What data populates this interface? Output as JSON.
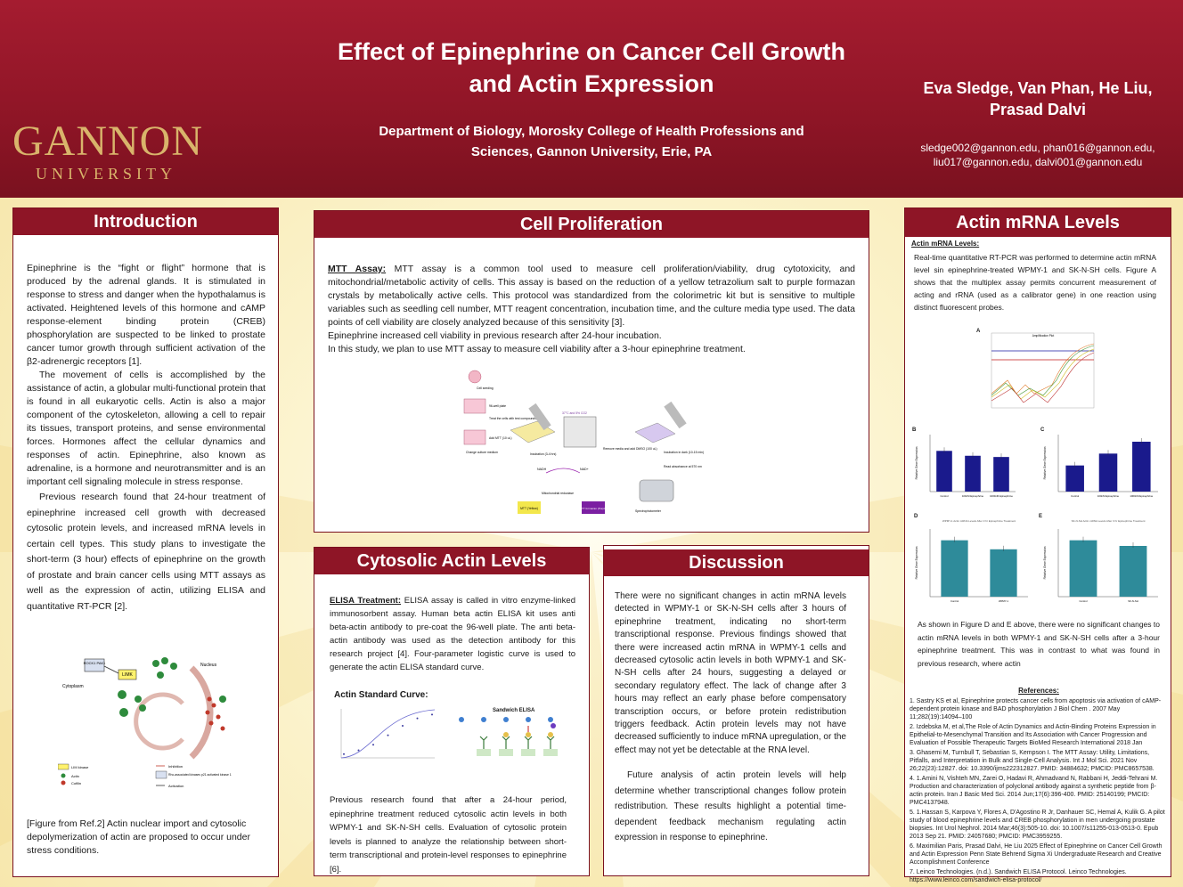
{
  "header": {
    "title_line1": "Effect of Epinephrine on Cancer Cell Growth",
    "title_line2": "and Actin Expression",
    "department_line1": "Department of Biology,  Morosky College of Health Professions and",
    "department_line2": "Sciences, Gannon University, Erie, PA",
    "authors_line1": "Eva Sledge, Van Phan, He Liu,",
    "authors_line2": "Prasad Dalvi",
    "emails_line1": "sledge002@gannon.edu, phan016@gannon.edu,",
    "emails_line2": "liu017@gannon.edu, dalvi001@gannon.edu",
    "logo_main": "GANNON",
    "logo_sub": "UNIVERSITY",
    "colors": {
      "maroon": "#8e1526",
      "gold": "#d9b46b"
    }
  },
  "introduction": {
    "heading": "Introduction",
    "p1": "Epinephrine is the “fight or flight” hormone that is produced by the adrenal glands. It is stimulated in response to stress and danger when the hypothalamus is activated. Heightened levels of this hormone and cAMP response-element binding protein (CREB) phosphorylation are suspected to be linked to prostate cancer tumor growth through sufficient activation of the β2-adrenergic receptors [1].",
    "p2": "The movement of cells is accomplished by the assistance of actin, a globular multi-functional protein that is found in all eukaryotic cells. Actin is also a major component of the cytoskeleton, allowing a cell to repair its tissues, transport proteins, and sense environmental forces. Hormones affect the cellular dynamics and responses of actin. Epinephrine, also known as adrenaline, is a hormone and neurotransmitter and is an important cell signaling molecule in stress response.",
    "p3": "Previous research found that 24-hour treatment of epinephrine increased cell growth with decreased cytosolic protein levels, and increased mRNA levels in certain cell types. This study plans to investigate the short-term (3 hour) effects of epinephrine on the growth of prostate and brain cancer cells using MTT assays as well as the expression of actin, utilizing ELISA and quantitative RT-PCR [2].",
    "figure": {
      "rock": "ROCK1 PAK1",
      "limk": "LIMK",
      "cytoplasm": "Cytoplasm",
      "nucleus": "Nucleus",
      "legend_limk": "LIM kinase",
      "legend_actin": "Actin",
      "legend_cofilin": "Cofilin",
      "legend_inhibition": "Inhibition",
      "legend_rho": "Rho-associated kinases p21 activated kinase 1",
      "legend_activation": "Activation"
    },
    "caption": "[Figure from Ref.2] Actin nuclear import and cytosolic depolymerization of actin are proposed to occur under stress conditions."
  },
  "cell_proliferation": {
    "heading": "Cell Proliferation",
    "mtt_label": "MTT Assay:",
    "mtt_text": " MTT assay is a common tool used to measure cell proliferation/viability, drug cytotoxicity, and mitochondrial/metabolic activity of cells.  This assay is based on the reduction of a yellow tetrazolium salt to purple formazan crystals by metabolically active cells. This protocol was standardized from the colorimetric kit but is sensitive to multiple variables such as seedling cell number, MTT reagent concentration, incubation time,  and the culture media type used. The data points of cell viability are closely analyzed because of this sensitivity [3].",
    "line2": "Epinephrine increased cell viability in previous research after 24-hour incubation.",
    "line3": "In this study, we plan to use MTT assay to measure cell viability after a 3-hour epinephrine treatment.",
    "diagram": {
      "seeding": "Cell seeding",
      "plate": "96-well plate",
      "treat": "Treat the cells with test compounds",
      "add_mtt": "Add MTT (10 uL)",
      "change": "Change culture medium",
      "incubation1": "Incubation (3-4 hrs)",
      "incubator": "37°C and 5% CO2",
      "remove": "Remove media and add DMSO (100 uL)",
      "incubation2": "Incubation in dark (10-15 min)",
      "absorbance": "Read absorbance at 570 nm",
      "nadh": "NADH",
      "nad": "NAD+",
      "mito": "Mitochondrial reductase",
      "mtt": "MTT (Yellow)",
      "formazan": "MTT formazan (Purple)",
      "spectro": "Spectrophotometer"
    }
  },
  "cytosolic": {
    "heading": "Cytosolic Actin Levels",
    "elisa_label": "ELISA Treatment:",
    "elisa_text": "  ELISA assay is called in vitro enzyme-linked immunosorbent assay. Human beta actin ELISA kit uses anti beta-actin antibody to pre-coat the 96-well plate. The anti beta-actin antibody was used as the detection antibody for this research project [4]. Four-parameter logistic curve is used to generate the actin ELISA standard curve.",
    "curve_title": "Actin Standard Curve:",
    "sandwich_title": "Sandwich ELISA",
    "after_text": "Previous research found that after a 24-hour period, epinephrine treatment reduced cytosolic actin levels in both WPMY-1 and SK-N-SH cells. Evaluation of cytosolic protein levels is planned to analyze the relationship between short-term transcriptional and protein-level responses to epinephrine [6]."
  },
  "discussion": {
    "heading": "Discussion",
    "p1": "There were no significant changes in actin mRNA levels detected in WPMY-1 or SK-N-SH cells after 3 hours of epinephrine treatment, indicating no short-term transcriptional response. Previous findings showed that there were increased actin mRNA in WPMY-1 cells and decreased cytosolic actin levels in both WPMY-1 and SK-N-SH cells after 24 hours, suggesting a delayed or secondary regulatory effect. The lack of change after 3 hours may reflect an early phase before compensatory transcription occurs, or before protein redistribution triggers feedback. Actin protein levels may not have decreased sufficiently to induce mRNA upregulation, or the effect may not yet be detectable at the RNA level.",
    "p2": "Future analysis of actin protein levels will help determine whether transcriptional changes follow protein redistribution. These results highlight a potential time-dependent feedback mechanism regulating actin expression in response to epinephrine."
  },
  "actin_mrna": {
    "heading": "Actin mRNA Levels",
    "sub_label": "Actin mRNA Levels:",
    "intro": "Real-time quantitative RT-PCR was performed to determine actin mRNA level sin epinephrine-treated WPMY-1 and SK-N-SH cells. Figure A shows that the multiplex assay permits concurrent measurement of acting and rRNA (used as a calibrator gene) in one reaction using distinct fluorescent probes.",
    "fig_a_label": "A",
    "fig_a_title": "Amplification Plot",
    "fig_b_label": "B",
    "fig_c_label": "C",
    "fig_d_label": "D",
    "fig_e_label": "E",
    "ylabel_fold": "Relative Gene Expression",
    "fig_d_title": "WPMY-1 Actin mRNA Levels After 3 hr Epinephrine Treatment",
    "fig_e_title": "SK-N-SH Actin mRNA Levels After 3 hr Epinephrine Treatment",
    "after_text": "As shown in Figure D and E above, there were no significant changes to actin mRNA levels in both WPMY-1 and SK-N-SH cells after a 3-hour epinephrine treatment. This was in contrast to what was found in previous research, where actin"
  },
  "references": {
    "heading": "References:",
    "items": [
      "1. Sastry KS et al, Epinephrine protects cancer cells from apoptosis via activation of cAMP-dependent protein kinase and BAD phosphorylation J Biol Chem . 2007 May 11;282(19):14094–100",
      "2. Izdebska M, et al,The Role of Actin Dynamics and Actin-Binding Proteins Expression in Epithelial-to-Mesenchymal Transition and Its Association with Cancer Progression and Evaluation of Possible Therapeutic Targets BioMed Research International 2018 Jan",
      "3. Ghasemi M, Turnbull T, Sebastian S, Kempson I. The MTT Assay: Utility, Limitations, Pitfalls, and Interpretation in Bulk and Single-Cell Analysis. Int J Mol Sci. 2021 Nov 26;22(23):12827. doi: 10.3390/ijms222312827. PMID: 34884632; PMCID: PMC8657538.",
      "4. 1.Amini N, Vishteh MN, Zarei O, Hadavi R, Ahmadvand N, Rabbani H, Jeddi-Tehrani M. Production and characterization of polyclonal antibody against a synthetic peptide from β-actin protein. Iran J Basic Med Sci. 2014 Jun;17(6):396-400. PMID: 25140199; PMCID: PMC4137948.",
      "5. 1.Hassan S, Karpova Y, Flores A, D'Agostino R Jr, Danhauer SC, Hemal A, Kulik G. A pilot study of blood epinephrine levels and CREB phosphorylation in men undergoing prostate biopsies. Int Urol Nephrol. 2014 Mar;46(3):505-10. doi: 10.1007/s11255-013-0513-0. Epub 2013 Sep 21. PMID: 24057680; PMCID: PMC3959255.",
      "6. Maximilian Paris, Prasad Dalvi, He Liu  2025 Effect of Epinephrine on Cancer Cell Growth and Actin Expression Penn State Behrend Sigma Xi Undergraduate Research and Creative Accomplishment Conference",
      "7. Leinco Technologies. (n.d.). Sandwich ELISA Protocol. Leinco Technologies. https://www.leinco.com/sandwich-elisa-protocol/"
    ]
  },
  "chart_data": [
    {
      "id": "B",
      "type": "bar",
      "title": "",
      "categories": [
        "Control",
        "100nM Epinephrine",
        "1000nM Epinephrine"
      ],
      "values": [
        1.0,
        0.88,
        0.85
      ],
      "ylim": [
        0,
        1.4
      ],
      "ylabel": "Relative Gene Expression",
      "color": "#1a1a8c"
    },
    {
      "id": "C",
      "type": "bar",
      "title": "",
      "categories": [
        "Control",
        "100nM Epinephrine",
        "1000nM Epinephrine"
      ],
      "values": [
        0.55,
        0.8,
        1.05
      ],
      "ylim": [
        0,
        1.2
      ],
      "ylabel": "Relative Gene Expression",
      "color": "#1a1a8c"
    },
    {
      "id": "D",
      "type": "bar",
      "title": "WPMY-1 Actin mRNA Levels After 3 hr Epinephrine Treatment",
      "categories": [
        "Control",
        "WPMY-1"
      ],
      "values": [
        1.0,
        0.84
      ],
      "ylim": [
        0,
        1.2
      ],
      "ylabel": "Relative Gene Expression",
      "color": "#2e8b9a"
    },
    {
      "id": "E",
      "type": "bar",
      "title": "SK-N-SH Actin mRNA Levels After 3 hr Epinephrine Treatment",
      "categories": [
        "Control",
        "SK-N-SH"
      ],
      "values": [
        1.0,
        0.9
      ],
      "ylim": [
        0,
        1.2
      ],
      "ylabel": "Relative Gene Expression",
      "color": "#2e8b9a"
    },
    {
      "id": "standard_curve",
      "type": "scatter",
      "title": "Actin Standard Curve:",
      "x": [
        1,
        2,
        3,
        4,
        5,
        6,
        7
      ],
      "y": [
        0.1,
        0.2,
        0.35,
        0.6,
        0.85,
        1.05,
        1.15
      ],
      "ylim": [
        0,
        1.3
      ]
    }
  ]
}
